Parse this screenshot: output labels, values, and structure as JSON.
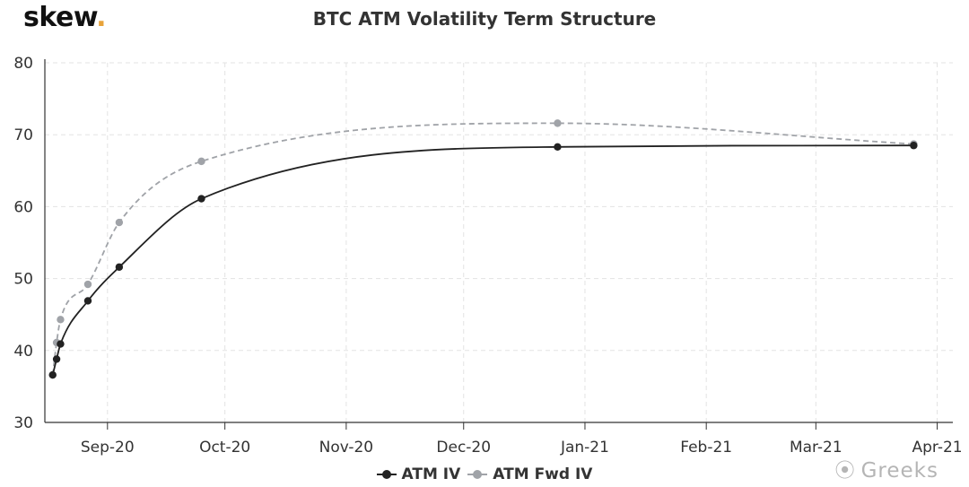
{
  "brand": {
    "name": "skew",
    "dot": "."
  },
  "watermark": {
    "icon": "wechat-icon",
    "text": "Greeks"
  },
  "colors": {
    "atm_iv": "#222222",
    "atm_fwd_iv": "#a0a3a8",
    "grid": "#e3e3e3",
    "axis": "#333333"
  },
  "chart_data": {
    "type": "line",
    "title": "BTC ATM Volatility Term Structure",
    "xlabel": "",
    "ylabel": "",
    "ylim": [
      30,
      80
    ],
    "yticks": [
      30,
      40,
      50,
      60,
      70,
      80
    ],
    "xlim": [
      "2020-08-16",
      "2021-04-05"
    ],
    "xticks": [
      {
        "date": "2020-09-01",
        "label": "Sep-20"
      },
      {
        "date": "2020-10-01",
        "label": "Oct-20"
      },
      {
        "date": "2020-11-01",
        "label": "Nov-20"
      },
      {
        "date": "2020-12-01",
        "label": "Dec-20"
      },
      {
        "date": "2021-01-01",
        "label": "Jan-21"
      },
      {
        "date": "2021-02-01",
        "label": "Feb-21"
      },
      {
        "date": "2021-03-01",
        "label": "Mar-21"
      },
      {
        "date": "2021-04-01",
        "label": "Apr-21"
      }
    ],
    "grid": true,
    "legend": "bottom",
    "series": [
      {
        "name": "ATM IV",
        "color": "#222222",
        "dashed": false,
        "points": [
          {
            "x": "2020-08-18",
            "y": 36.6
          },
          {
            "x": "2020-08-19",
            "y": 38.8
          },
          {
            "x": "2020-08-20",
            "y": 40.9
          },
          {
            "x": "2020-08-27",
            "y": 46.9
          },
          {
            "x": "2020-09-04",
            "y": 51.6
          },
          {
            "x": "2020-09-25",
            "y": 61.1
          },
          {
            "x": "2020-12-25",
            "y": 68.3
          },
          {
            "x": "2021-03-26",
            "y": 68.5
          }
        ]
      },
      {
        "name": "ATM Fwd IV",
        "color": "#a0a3a8",
        "dashed": true,
        "points": [
          {
            "x": "2020-08-18",
            "y": 36.6
          },
          {
            "x": "2020-08-19",
            "y": 41.1
          },
          {
            "x": "2020-08-20",
            "y": 44.3
          },
          {
            "x": "2020-08-27",
            "y": 49.2
          },
          {
            "x": "2020-09-04",
            "y": 57.8
          },
          {
            "x": "2020-09-25",
            "y": 66.3
          },
          {
            "x": "2020-12-25",
            "y": 71.6
          },
          {
            "x": "2021-03-26",
            "y": 68.7
          }
        ]
      }
    ]
  }
}
